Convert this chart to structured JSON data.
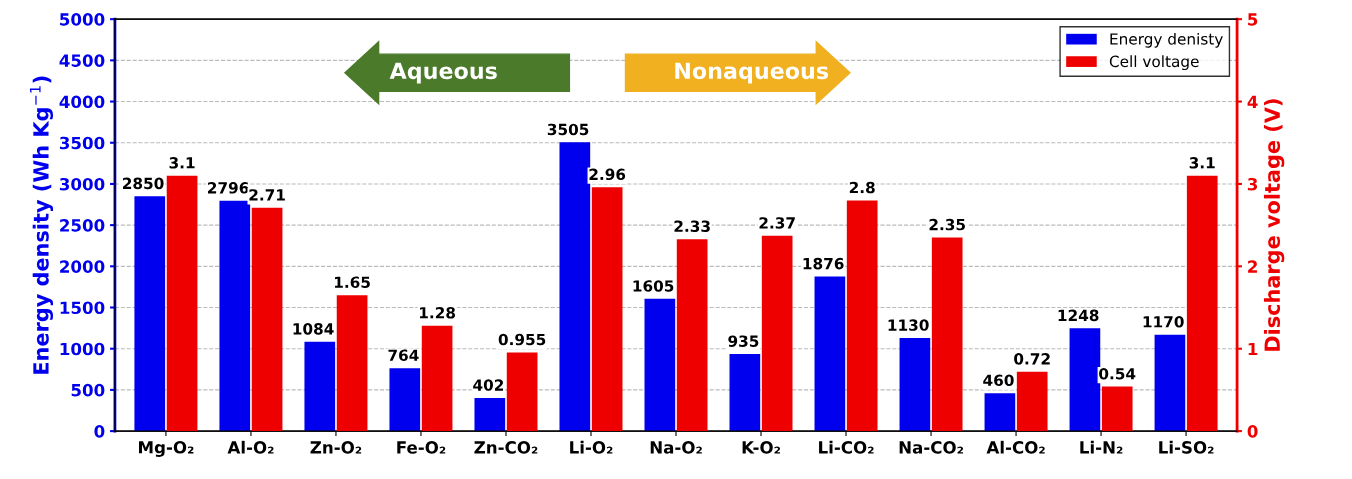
{
  "chart_data": {
    "type": "bar",
    "categories": [
      "Mg-O₂",
      "Al-O₂",
      "Zn-O₂",
      "Fe-O₂",
      "Zn-CO₂",
      "Li-O₂",
      "Na-O₂",
      "K-O₂",
      "Li-CO₂",
      "Na-CO₂",
      "Al-CO₂",
      "Li-N₂",
      "Li-SO₂"
    ],
    "series": [
      {
        "name": "Energy denisty",
        "color": "#0000ee",
        "values": [
          2850,
          2796,
          1084,
          764,
          402,
          3505,
          1605,
          935,
          1876,
          1130,
          460,
          1248,
          1170
        ]
      },
      {
        "name": "Cell voltage",
        "color": "#ee0000",
        "axis": "y2",
        "values": [
          3.1,
          2.71,
          1.65,
          1.28,
          0.955,
          2.96,
          2.33,
          2.37,
          2.8,
          2.35,
          0.72,
          0.54,
          3.1
        ]
      }
    ],
    "ylabel": "Energy density (Wh Kg$^{−1}$)",
    "y2label": "Discharge voltage (V)",
    "ylim": [
      0,
      5000
    ],
    "yticks": [
      0,
      500,
      1000,
      1500,
      2000,
      2500,
      3000,
      3500,
      4000,
      4500,
      5000
    ],
    "y2lim": [
      0,
      5
    ],
    "y2ticks": [
      0,
      1,
      2,
      3,
      4,
      5
    ],
    "grid": "y",
    "legend": "top right",
    "data_labels": true,
    "annotations": [
      "Aqueous",
      "Nonaqueous"
    ]
  }
}
